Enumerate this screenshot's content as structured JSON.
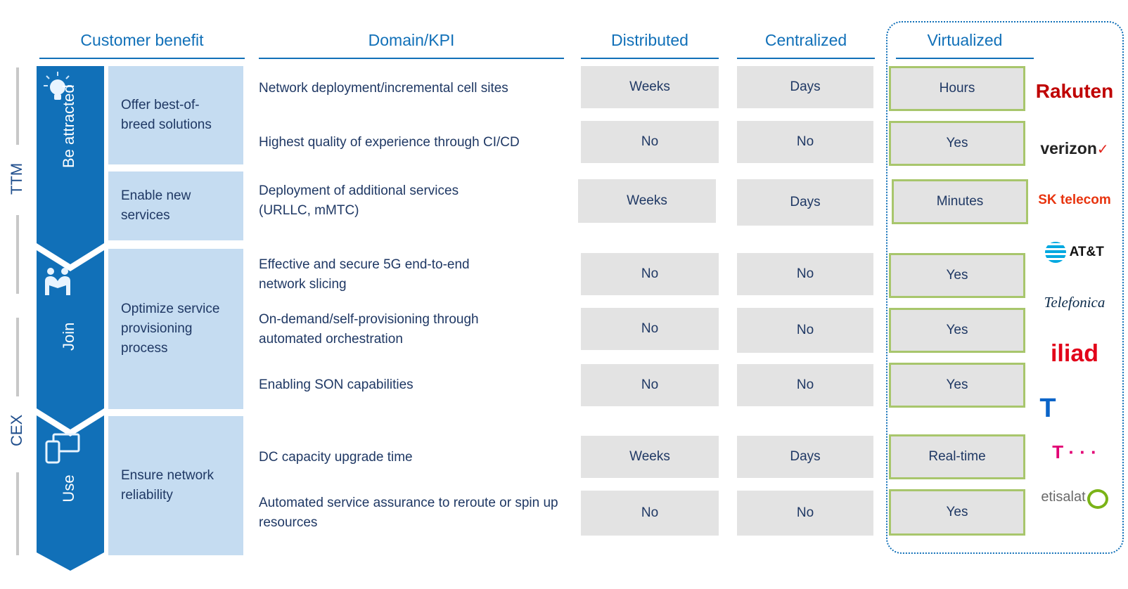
{
  "headers": {
    "customer_benefit": "Customer benefit",
    "domain_kpi": "Domain/KPI",
    "distributed": "Distributed",
    "centralized": "Centralized",
    "virtualized": "Virtualized"
  },
  "side_labels": {
    "ttm": "TTM",
    "cex": "CEX"
  },
  "stages": [
    {
      "label": "Be attracted",
      "icon": "lightbulb-icon"
    },
    {
      "label": "Join",
      "icon": "people-icon"
    },
    {
      "label": "Use",
      "icon": "devices-icon"
    }
  ],
  "benefits": [
    "Offer best-of-breed solutions",
    "Enable new services",
    "Optimize service provisioning process",
    "Ensure network reliability"
  ],
  "rows": [
    {
      "kpi": "Network deployment/incremental cell sites",
      "distributed": "Weeks",
      "centralized": "Days",
      "virtualized": "Hours"
    },
    {
      "kpi": "Highest quality of experience through CI/CD",
      "distributed": "No",
      "centralized": "No",
      "virtualized": "Yes"
    },
    {
      "kpi": "Deployment of additional services (URLLC, mMTC)",
      "distributed": "Weeks",
      "centralized": "Days",
      "virtualized": "Minutes"
    },
    {
      "kpi": "Effective and secure 5G end-to-end network slicing",
      "distributed": "No",
      "centralized": "No",
      "virtualized": "Yes"
    },
    {
      "kpi": "On-demand/self-provisioning through automated orchestration",
      "distributed": "No",
      "centralized": "No",
      "virtualized": "Yes"
    },
    {
      "kpi": "Enabling SON capabilities",
      "distributed": "No",
      "centralized": "No",
      "virtualized": "Yes"
    },
    {
      "kpi": "DC capacity upgrade time",
      "distributed": "Weeks",
      "centralized": "Days",
      "virtualized": "Real-time"
    },
    {
      "kpi": "Automated service assurance to reroute or spin up resources",
      "distributed": "No",
      "centralized": "No",
      "virtualized": "Yes"
    }
  ],
  "logos": [
    {
      "text": "Rakuten",
      "icon": "rakuten-logo",
      "color": "#bf0000"
    },
    {
      "text": "verizon",
      "icon": "verizon-logo",
      "color": "#222222"
    },
    {
      "text": "SK telecom",
      "icon": "sk-telecom-logo",
      "color": "#e8340f"
    },
    {
      "text": "AT&T",
      "icon": "att-logo",
      "color": "#00a8e0"
    },
    {
      "text": "Telefonica",
      "icon": "telefonica-logo",
      "color": "#0b2a4a"
    },
    {
      "text": "iliad",
      "icon": "iliad-logo",
      "color": "#e2001a"
    },
    {
      "text": "T",
      "icon": "telstra-logo",
      "color": "#0a64c8"
    },
    {
      "text": "T · · ·",
      "icon": "telekom-logo",
      "color": "#e20074"
    },
    {
      "text": "etisalat",
      "icon": "etisalat-logo",
      "color": "#6a6a6a"
    }
  ],
  "colors": {
    "accent": "#1170b8",
    "benefit_bg": "#c5dcf1",
    "cell_bg": "#e3e3e3",
    "virt_border": "#a8c66c"
  }
}
